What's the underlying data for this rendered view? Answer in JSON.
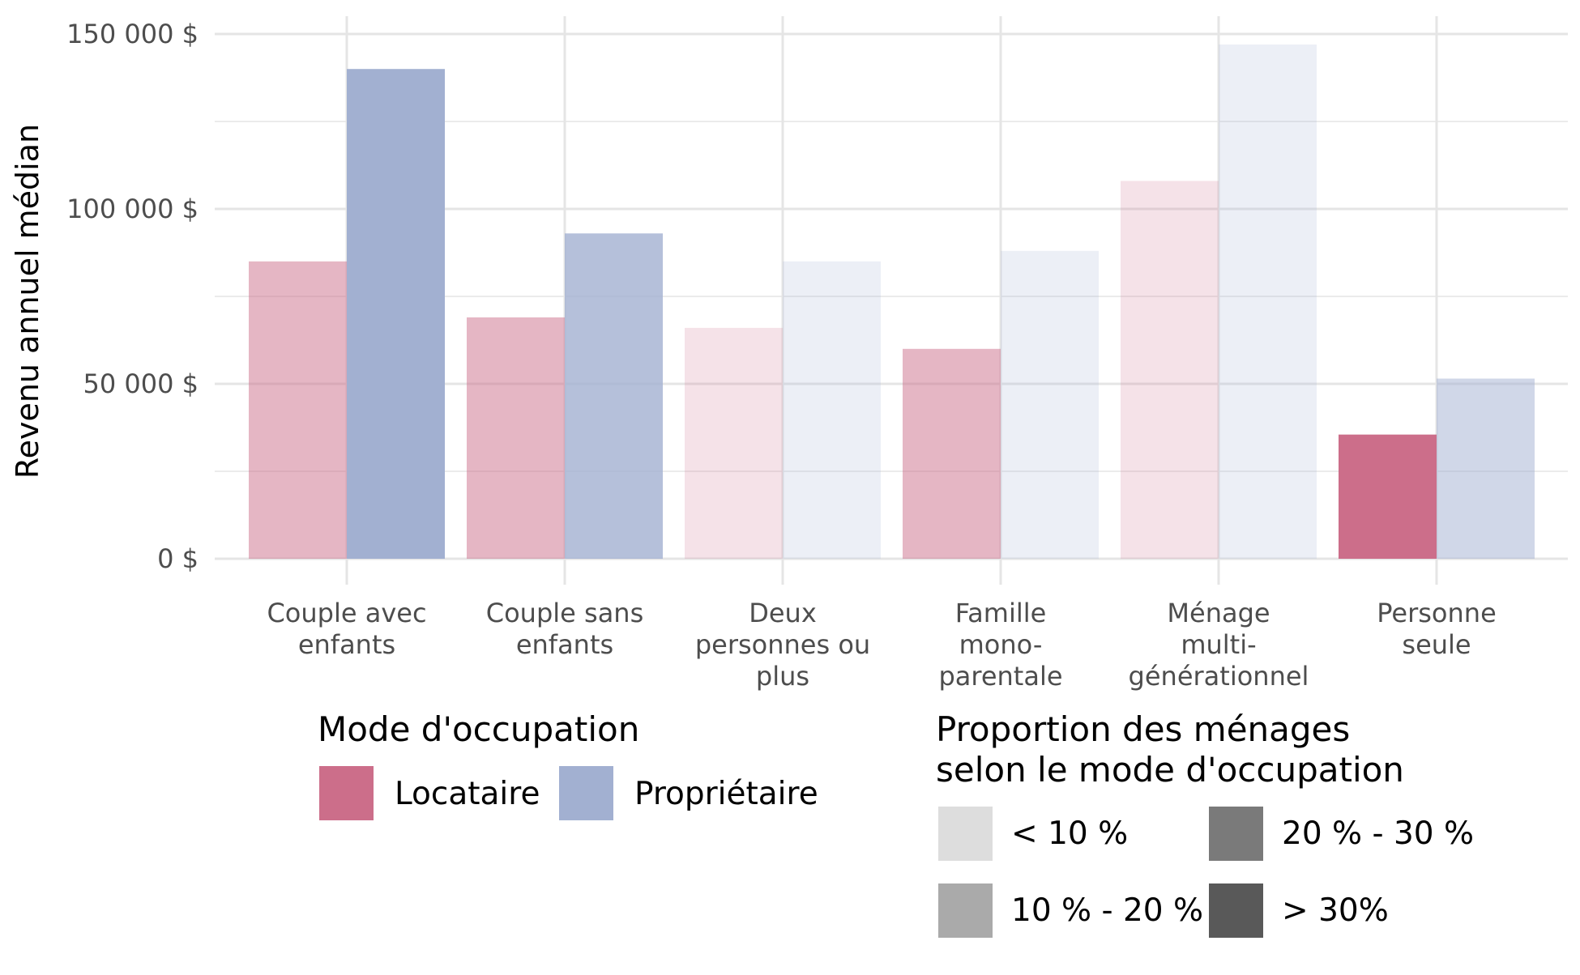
{
  "chart_data": {
    "type": "bar",
    "ylabel": "Revenu annuel médian",
    "xlabel": "",
    "ylim": [
      0,
      150000
    ],
    "ytick_values": [
      0,
      50000,
      100000,
      150000
    ],
    "ytick_labels": [
      "0 $",
      "50 000 $",
      "100 000 $",
      "150 000 $"
    ],
    "grid": true,
    "categories": [
      [
        "Couple avec",
        "enfants"
      ],
      [
        "Couple sans",
        "enfants"
      ],
      [
        "Deux",
        "personnes ou",
        "plus"
      ],
      [
        "Famille",
        "mono-",
        "parentale"
      ],
      [
        "Ménage",
        "multi-",
        "générationnel"
      ],
      [
        "Personne",
        "seule"
      ]
    ],
    "series": [
      {
        "name": "Locataire",
        "color": "#cc6e8a",
        "values": [
          85000,
          69000,
          66000,
          60000,
          108000,
          35500
        ],
        "proportion_class": [
          "10 % - 20 %",
          "10 % - 20 %",
          "< 10 %",
          "10 % - 20 %",
          "< 10 %",
          "> 30%"
        ]
      },
      {
        "name": "Propriétaire",
        "color": "#a2b0d1",
        "values": [
          140000,
          93000,
          85000,
          88000,
          147000,
          51500
        ],
        "proportion_class": [
          "> 30%",
          "20 % - 30 %",
          "< 10 %",
          "< 10 %",
          "< 10 %",
          "10 % - 20 %"
        ]
      }
    ],
    "legend_mode": {
      "title": "Mode d'occupation",
      "placement": "bottom-left",
      "items": [
        {
          "label": "Locataire",
          "color": "#cc6e8a"
        },
        {
          "label": "Propriétaire",
          "color": "#a2b0d1"
        }
      ]
    },
    "legend_proportion": {
      "title": [
        "Proportion des ménages",
        "selon le mode d'occupation"
      ],
      "placement": "bottom-right",
      "items": [
        {
          "label": "< 10 %",
          "color": "#dddddd",
          "opacity": 0.2
        },
        {
          "label": "20 % - 30 %",
          "color": "#7a7a7a",
          "opacity": 0.8
        },
        {
          "label": "10 % - 20 %",
          "color": "#aaaaaa",
          "opacity": 0.5
        },
        {
          "label": "> 30%",
          "color": "#595959",
          "opacity": 1.0
        }
      ]
    }
  }
}
